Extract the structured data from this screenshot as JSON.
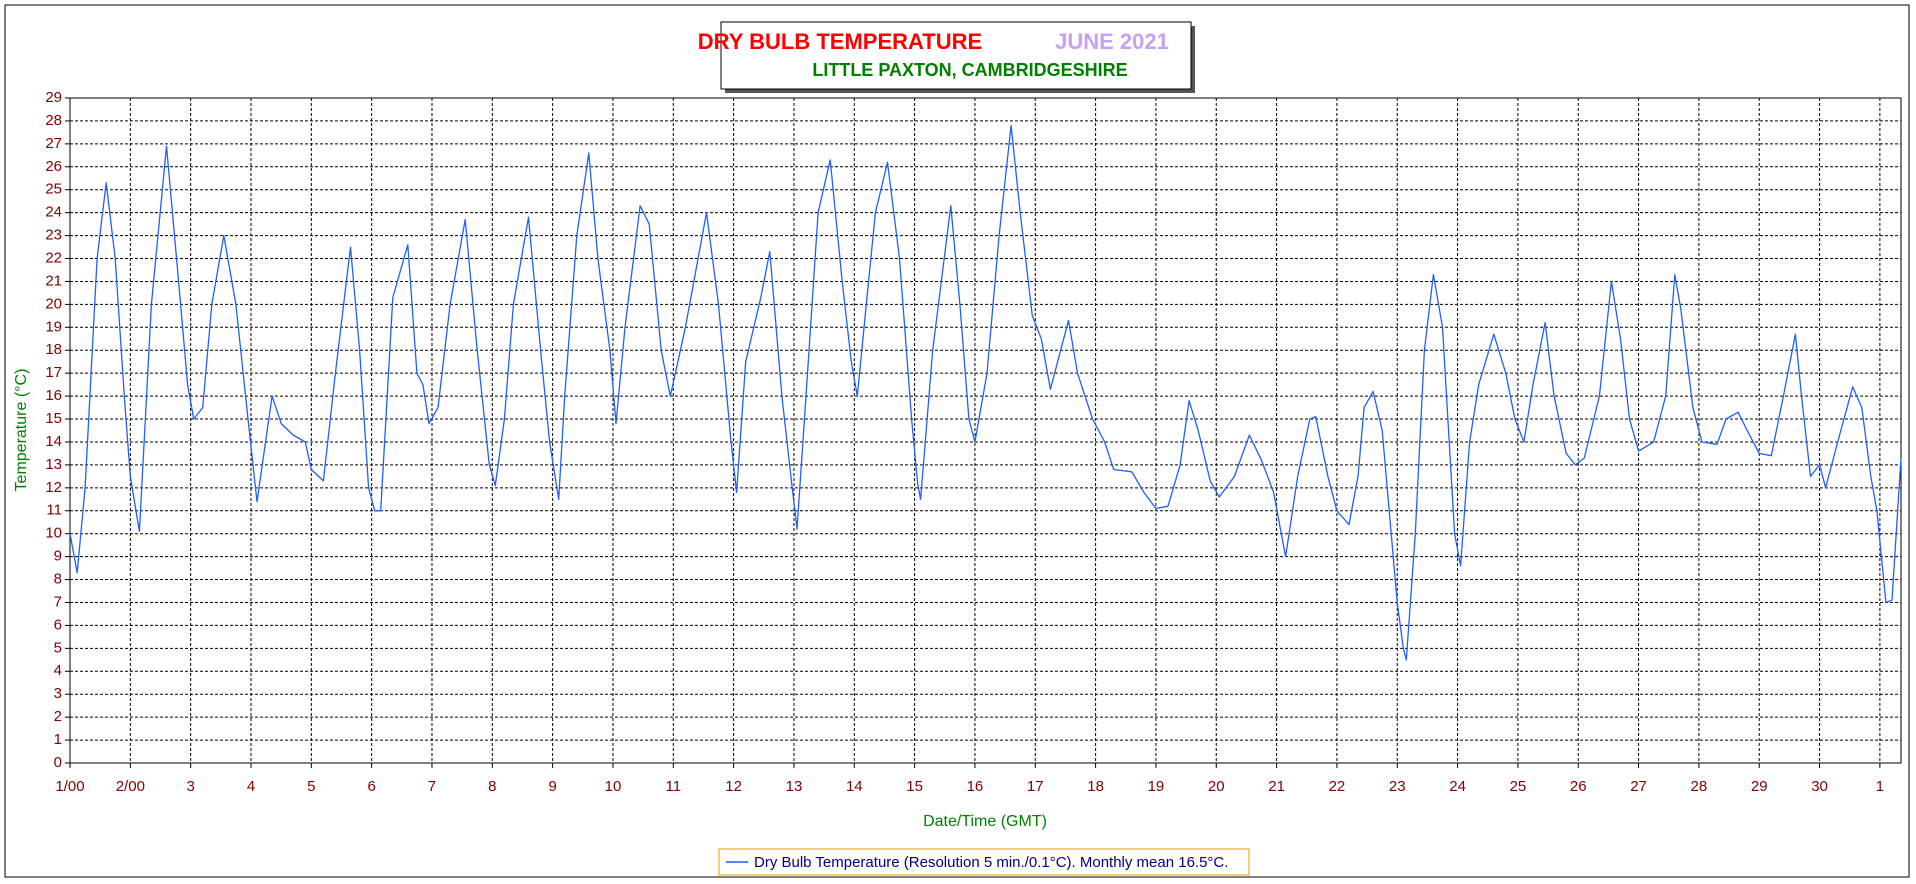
{
  "chart_data": {
    "type": "line",
    "title": "DRY BULB TEMPERATURE",
    "title_period": "JUNE 2021",
    "subtitle": "LITTLE PAXTON, CAMBRIDGESHIRE",
    "x_label": "Date/Time (GMT)",
    "y_label": "Temperature (°C)",
    "grid": true,
    "xlim": [
      0,
      30.35
    ],
    "ylim": [
      0,
      29
    ],
    "yticks": [
      0,
      1,
      2,
      3,
      4,
      5,
      6,
      7,
      8,
      9,
      10,
      11,
      12,
      13,
      14,
      15,
      16,
      17,
      18,
      19,
      20,
      21,
      22,
      23,
      24,
      25,
      26,
      27,
      28,
      29
    ],
    "xticks": [
      {
        "value": 0,
        "label": "1/00"
      },
      {
        "value": 1,
        "label": "2/00"
      },
      {
        "value": 2,
        "label": "3"
      },
      {
        "value": 3,
        "label": "4"
      },
      {
        "value": 4,
        "label": "5"
      },
      {
        "value": 5,
        "label": "6"
      },
      {
        "value": 6,
        "label": "7"
      },
      {
        "value": 7,
        "label": "8"
      },
      {
        "value": 8,
        "label": "9"
      },
      {
        "value": 9,
        "label": "10"
      },
      {
        "value": 10,
        "label": "11"
      },
      {
        "value": 11,
        "label": "12"
      },
      {
        "value": 12,
        "label": "13"
      },
      {
        "value": 13,
        "label": "14"
      },
      {
        "value": 14,
        "label": "15"
      },
      {
        "value": 15,
        "label": "16"
      },
      {
        "value": 16,
        "label": "17"
      },
      {
        "value": 17,
        "label": "18"
      },
      {
        "value": 18,
        "label": "19"
      },
      {
        "value": 19,
        "label": "20"
      },
      {
        "value": 20,
        "label": "21"
      },
      {
        "value": 21,
        "label": "22"
      },
      {
        "value": 22,
        "label": "23"
      },
      {
        "value": 23,
        "label": "24"
      },
      {
        "value": 24,
        "label": "25"
      },
      {
        "value": 25,
        "label": "26"
      },
      {
        "value": 26,
        "label": "27"
      },
      {
        "value": 27,
        "label": "28"
      },
      {
        "value": 28,
        "label": "29"
      },
      {
        "value": 29,
        "label": "30"
      },
      {
        "value": 30,
        "label": "1"
      }
    ],
    "x": [
      0,
      0.12,
      0.25,
      0.45,
      0.6,
      0.75,
      0.9,
      1.0,
      1.15,
      1.35,
      1.6,
      1.8,
      1.95,
      2.05,
      2.2,
      2.35,
      2.55,
      2.75,
      2.95,
      3.1,
      3.35,
      3.5,
      3.7,
      3.9,
      4.0,
      4.2,
      4.4,
      4.65,
      4.8,
      4.95,
      5.05,
      5.15,
      5.35,
      5.6,
      5.75,
      5.85,
      5.95,
      6.1,
      6.3,
      6.55,
      6.75,
      6.95,
      7.05,
      7.2,
      7.35,
      7.6,
      7.8,
      7.95,
      8.1,
      8.2,
      8.4,
      8.6,
      8.75,
      8.95,
      9.05,
      9.2,
      9.45,
      9.6,
      9.8,
      9.95,
      10.2,
      10.55,
      10.75,
      10.95,
      11.05,
      11.2,
      11.45,
      11.6,
      11.8,
      11.95,
      12.05,
      12.2,
      12.4,
      12.6,
      12.8,
      12.95,
      13.05,
      13.2,
      13.35,
      13.55,
      13.75,
      13.95,
      14.05,
      14.1,
      14.3,
      14.6,
      14.75,
      14.9,
      15.0,
      15.2,
      15.4,
      15.6,
      15.75,
      15.95,
      16.1,
      16.25,
      16.55,
      16.7,
      16.95,
      17.15,
      17.3,
      17.6,
      17.8,
      18.0,
      18.2,
      18.4,
      18.55,
      18.7,
      18.9,
      19.05,
      19.3,
      19.55,
      19.75,
      19.95,
      20.15,
      20.35,
      20.55,
      20.65,
      20.85,
      21.0,
      21.2,
      21.35,
      21.45,
      21.6,
      21.75,
      21.9,
      22.0,
      22.1,
      22.15,
      22.3,
      22.45,
      22.6,
      22.75,
      22.95,
      23.05,
      23.2,
      23.35,
      23.6,
      23.8,
      23.95,
      24.1,
      24.25,
      24.45,
      24.6,
      24.8,
      24.95,
      25.1,
      25.35,
      25.55,
      25.7,
      25.85,
      26.0,
      26.25,
      26.45,
      26.6,
      26.7,
      26.9,
      27.05,
      27.3,
      27.45,
      27.65,
      27.8,
      28.0,
      28.2,
      28.4,
      28.6,
      28.7,
      28.85,
      29.0,
      29.1,
      29.3,
      29.55,
      29.7,
      29.85,
      29.95,
      30.1,
      30.2,
      30.35
    ],
    "series": [
      {
        "name": "Dry Bulb Temperature (Resolution 5 min./0.1°C). Monthly mean 16.5°C.",
        "color": "#1f5fff",
        "values": [
          10.0,
          8.3,
          12,
          22,
          25.3,
          22,
          16,
          12.5,
          10.1,
          20,
          26.9,
          21,
          16.5,
          15,
          15.5,
          20,
          23,
          20,
          15,
          11.4,
          16,
          14.8,
          14.3,
          14.0,
          12.8,
          12.3,
          17,
          22.5,
          18,
          12,
          11,
          11,
          20.3,
          22.6,
          17,
          16.5,
          14.8,
          15.5,
          20,
          23.7,
          18,
          13,
          12.1,
          15,
          20,
          23.8,
          18,
          14,
          11.5,
          16,
          23,
          26.6,
          22,
          18,
          14.8,
          19,
          24.3,
          23.5,
          18,
          16,
          19,
          24.0,
          20,
          14.2,
          11.8,
          17.5,
          20.3,
          22.3,
          16,
          12.5,
          10.2,
          16,
          24,
          26.3,
          21,
          17.5,
          16,
          20,
          24,
          26.2,
          22,
          15,
          12.2,
          11.5,
          18,
          24.3,
          20,
          15,
          14,
          17,
          23,
          27.8,
          24,
          19.5,
          18.5,
          16.3,
          19.3,
          17,
          15,
          14,
          12.8,
          12.7,
          11.8,
          11.1,
          11.2,
          13,
          15.8,
          14.5,
          12.3,
          11.6,
          12.5,
          14.3,
          13.2,
          11.8,
          9.0,
          12.5,
          15,
          15.1,
          12.5,
          11,
          10.4,
          12.5,
          15.5,
          16.2,
          14.5,
          10,
          7,
          5,
          4.5,
          10,
          18,
          21.3,
          19,
          10,
          8.6,
          14,
          16.5,
          18.7,
          17,
          15,
          14,
          16.5,
          19.2,
          16,
          13.5,
          13,
          13.3,
          16,
          21,
          18.5,
          15,
          13.6,
          14,
          16,
          21.3,
          19.8,
          15.5,
          14,
          13.9,
          15,
          15.3,
          14.5,
          13.5,
          13.4,
          16,
          18.7,
          16,
          12.5,
          13,
          12,
          14,
          16.4,
          15.5,
          12.5,
          11,
          7,
          7.1,
          13.3
        ]
      }
    ]
  }
}
